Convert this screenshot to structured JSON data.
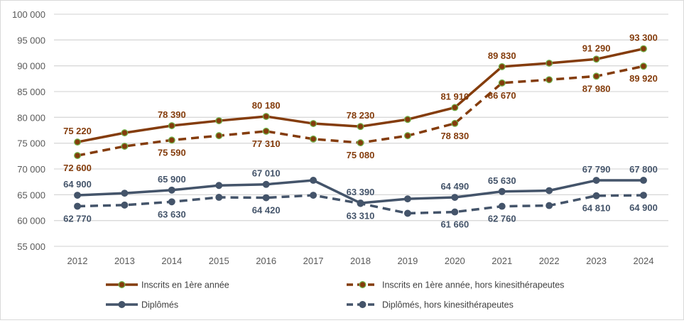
{
  "chart_data": {
    "type": "line",
    "title": "",
    "xlabel": "",
    "ylabel": "",
    "ylim": [
      55000,
      100000
    ],
    "yticks": [
      55000,
      60000,
      65000,
      70000,
      75000,
      80000,
      85000,
      90000,
      95000,
      100000
    ],
    "ytick_labels": [
      "55 000",
      "60 000",
      "65 000",
      "70 000",
      "75 000",
      "80 000",
      "85 000",
      "90 000",
      "95 000",
      "100 000"
    ],
    "grid": true,
    "legend_position": "bottom",
    "x": [
      "2012",
      "2013",
      "2014",
      "2015",
      "2016",
      "2017",
      "2018",
      "2019",
      "2020",
      "2021",
      "2022",
      "2023",
      "2024"
    ],
    "series": [
      {
        "name": "Inscrits en 1ère année",
        "color": "#843C0C",
        "marker_edge": "#70AD47",
        "dash": false,
        "values": [
          75220,
          77000,
          78390,
          79350,
          80180,
          78800,
          78230,
          79600,
          81910,
          89830,
          90500,
          91290,
          93300
        ],
        "labels": [
          "75 220",
          null,
          "78 390",
          null,
          "80 180",
          null,
          "78 230",
          null,
          "81 910",
          "89 830",
          null,
          "91 290",
          "93 300"
        ],
        "label_pos": "above"
      },
      {
        "name": "Inscrits en 1ère année, hors kinesithérapeutes",
        "color": "#843C0C",
        "marker_edge": "#70AD47",
        "dash": true,
        "values": [
          72600,
          74400,
          75590,
          76450,
          77310,
          75800,
          75080,
          76450,
          78830,
          86670,
          87300,
          87980,
          89920
        ],
        "labels": [
          "72 600",
          null,
          "75 590",
          null,
          "77 310",
          null,
          "75 080",
          null,
          "78 830",
          "86 670",
          null,
          "87 980",
          "89 920"
        ],
        "label_pos": "below"
      },
      {
        "name": "Diplômés",
        "color": "#44546A",
        "marker_edge": "#44546A",
        "dash": false,
        "values": [
          64900,
          65300,
          65900,
          66800,
          67010,
          67800,
          63390,
          64200,
          64490,
          65630,
          65800,
          67790,
          67800
        ],
        "labels": [
          "64 900",
          null,
          "65 900",
          null,
          "67 010",
          null,
          "63 390",
          null,
          "64 490",
          "65 630",
          null,
          "67 790",
          "67 800"
        ],
        "label_pos": "above"
      },
      {
        "name": "Diplômés, hors kinesithérapeutes",
        "color": "#44546A",
        "marker_edge": "#44546A",
        "dash": true,
        "values": [
          62770,
          63000,
          63630,
          64500,
          64420,
          64900,
          63310,
          61400,
          61660,
          62760,
          62900,
          64810,
          64900
        ],
        "labels": [
          "62 770",
          null,
          "63 630",
          null,
          "64 420",
          null,
          "63 310",
          null,
          "61 660",
          "62 760",
          null,
          "64 810",
          "64 900"
        ],
        "label_pos": "below"
      }
    ]
  }
}
